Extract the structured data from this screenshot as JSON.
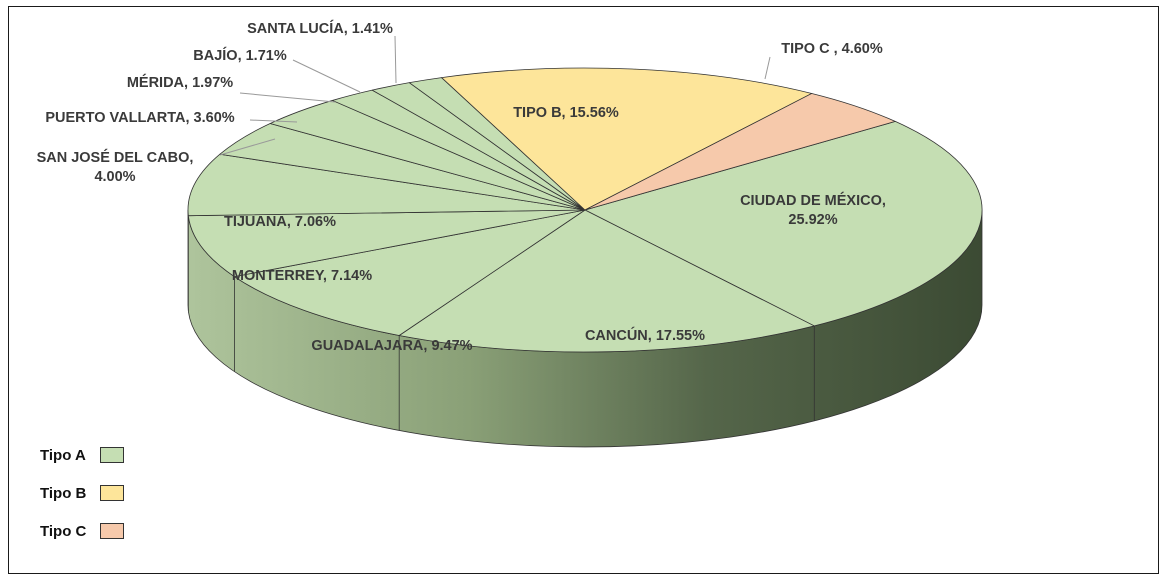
{
  "chart_data": {
    "type": "pie",
    "slices": [
      {
        "label": "CIUDAD DE MÉXICO, 25.92%",
        "name": "CIUDAD DE MÉXICO",
        "value": 25.92,
        "group": "Tipo A"
      },
      {
        "label": "CANCÚN, 17.55%",
        "name": "CANCÚN",
        "value": 17.55,
        "group": "Tipo A"
      },
      {
        "label": "GUADALAJARA, 9.47%",
        "name": "GUADALAJARA",
        "value": 9.47,
        "group": "Tipo A"
      },
      {
        "label": "MONTERREY, 7.14%",
        "name": "MONTERREY",
        "value": 7.14,
        "group": "Tipo A"
      },
      {
        "label": "TIJUANA, 7.06%",
        "name": "TIJUANA",
        "value": 7.06,
        "group": "Tipo A"
      },
      {
        "label": "SAN JOSÉ DEL CABO, 4.00%",
        "name": "SAN JOSÉ DEL CABO",
        "value": 4.0,
        "group": "Tipo A"
      },
      {
        "label": "PUERTO VALLARTA, 3.60%",
        "name": "PUERTO VALLARTA",
        "value": 3.6,
        "group": "Tipo A"
      },
      {
        "label": "MÉRIDA, 1.97%",
        "name": "MÉRIDA",
        "value": 1.97,
        "group": "Tipo A"
      },
      {
        "label": "BAJÍO, 1.71%",
        "name": "BAJÍO",
        "value": 1.71,
        "group": "Tipo A"
      },
      {
        "label": "SANTA LUCÍA, 1.41%",
        "name": "SANTA LUCÍA",
        "value": 1.41,
        "group": "Tipo A"
      },
      {
        "label": "TIPO B, 15.56%",
        "name": "TIPO B",
        "value": 15.56,
        "group": "Tipo B"
      },
      {
        "label": "TIPO C , 4.60%",
        "name": "TIPO C",
        "value": 4.6,
        "group": "Tipo C"
      }
    ],
    "legend": [
      {
        "label": "Tipo A",
        "color": "#c5deb3"
      },
      {
        "label": "Tipo B",
        "color": "#fde59a"
      },
      {
        "label": "Tipo C",
        "color": "#f6c9ab"
      }
    ],
    "style": "3d-pie",
    "legend_position": "bottom-left"
  }
}
